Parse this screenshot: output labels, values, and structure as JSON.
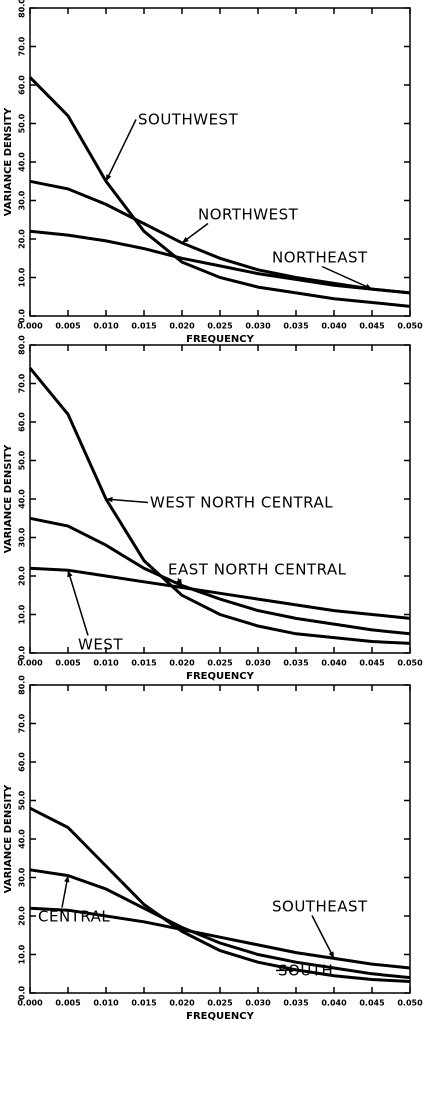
{
  "chart_data": [
    {
      "type": "line",
      "xlabel": "FREQUENCY",
      "ylabel": "VARIANCE DENSITY",
      "x": [
        0,
        0.005,
        0.01,
        0.015,
        0.02,
        0.025,
        0.03,
        0.035,
        0.04,
        0.045,
        0.05
      ],
      "xlim": [
        0,
        0.05
      ],
      "ylim": [
        0,
        80
      ],
      "xticks": [
        {
          "value": 0,
          "label": "0.000"
        },
        0.005,
        {
          "value": 0.01,
          "label": "0.010"
        },
        0.015,
        {
          "value": 0.02,
          "label": "0.020"
        },
        0.025,
        {
          "value": 0.03,
          "label": "0.030"
        },
        0.035,
        {
          "value": 0.04,
          "label": "0.040"
        },
        0.045,
        {
          "value": 0.05,
          "label": "0.050"
        }
      ],
      "yticks": [
        {
          "value": 0,
          "label": "0.0"
        },
        {
          "value": 10,
          "label": "10.0"
        },
        {
          "value": 20,
          "label": "20.0"
        },
        {
          "value": 30,
          "label": "30.0"
        },
        {
          "value": 40,
          "label": "40.0"
        },
        {
          "value": 50,
          "label": "50.0"
        },
        {
          "value": 60,
          "label": "60.0"
        },
        {
          "value": 70,
          "label": "70.0"
        },
        {
          "value": 80,
          "label": "80.0"
        }
      ],
      "series": [
        {
          "name": "SOUTHWEST",
          "color": "#000000",
          "values": [
            62,
            52,
            35,
            22,
            14,
            10,
            7.5,
            6,
            4.5,
            3.5,
            2.5
          ]
        },
        {
          "name": "NORTHWEST",
          "color": "#000000",
          "values": [
            35,
            33,
            29,
            24,
            19,
            15,
            12,
            10,
            8.5,
            7,
            6
          ]
        },
        {
          "name": "NORTHEAST",
          "color": "#000000",
          "values": [
            22,
            21,
            19.5,
            17.5,
            15,
            13,
            11,
            9.5,
            8,
            7,
            6
          ]
        }
      ]
    },
    {
      "type": "line",
      "xlabel": "FREQUENCY",
      "ylabel": "VARIANCE DENSITY",
      "x": [
        0,
        0.005,
        0.01,
        0.015,
        0.02,
        0.025,
        0.03,
        0.035,
        0.04,
        0.045,
        0.05
      ],
      "xlim": [
        0,
        0.05
      ],
      "ylim": [
        0,
        80
      ],
      "xticks": [
        {
          "value": 0,
          "label": "0.000"
        },
        0.005,
        {
          "value": 0.01,
          "label": "0.010"
        },
        0.015,
        {
          "value": 0.02,
          "label": "0.020"
        },
        0.025,
        {
          "value": 0.03,
          "label": "0.030"
        },
        0.035,
        {
          "value": 0.04,
          "label": "0.040"
        },
        0.045,
        {
          "value": 0.05,
          "label": "0.050"
        }
      ],
      "yticks": [
        {
          "value": 0,
          "label": "0.0"
        },
        {
          "value": 10,
          "label": "10.0"
        },
        {
          "value": 20,
          "label": "20.0"
        },
        {
          "value": 30,
          "label": "30.0"
        },
        {
          "value": 40,
          "label": "40.0"
        },
        {
          "value": 50,
          "label": "50.0"
        },
        {
          "value": 60,
          "label": "60.0"
        },
        {
          "value": 70,
          "label": "70.0"
        },
        {
          "value": 80,
          "label": "80.0"
        }
      ],
      "series": [
        {
          "name": "WEST NORTH CENTRAL",
          "color": "#000000",
          "values": [
            74,
            62,
            40,
            24,
            15,
            10,
            7,
            5,
            4,
            3,
            2.5
          ]
        },
        {
          "name": "EAST NORTH CENTRAL",
          "color": "#000000",
          "values": [
            35,
            33,
            28,
            22,
            17.5,
            14,
            11,
            9,
            7.5,
            6,
            5
          ]
        },
        {
          "name": "WEST",
          "color": "#000000",
          "values": [
            22,
            21.5,
            20,
            18.5,
            17,
            15.5,
            14,
            12.5,
            11,
            10,
            9
          ]
        }
      ]
    },
    {
      "type": "line",
      "xlabel": "FREQUENCY",
      "ylabel": "VARIANCE DENSITY",
      "x": [
        0,
        0.005,
        0.01,
        0.015,
        0.02,
        0.025,
        0.03,
        0.035,
        0.04,
        0.045,
        0.05
      ],
      "xlim": [
        0,
        0.05
      ],
      "ylim": [
        0,
        80
      ],
      "xticks": [
        {
          "value": 0,
          "label": "0.000"
        },
        0.005,
        {
          "value": 0.01,
          "label": "0.010"
        },
        0.015,
        {
          "value": 0.02,
          "label": "0.020"
        },
        0.025,
        {
          "value": 0.03,
          "label": "0.030"
        },
        0.035,
        {
          "value": 0.04,
          "label": "0.040"
        },
        0.045,
        {
          "value": 0.05,
          "label": "0.050"
        }
      ],
      "yticks": [
        {
          "value": 0,
          "label": "0.0"
        },
        {
          "value": 10,
          "label": "10.0"
        },
        {
          "value": 20,
          "label": "20.0"
        },
        {
          "value": 30,
          "label": "30.0"
        },
        {
          "value": 40,
          "label": "40.0"
        },
        {
          "value": 50,
          "label": "50.0"
        },
        {
          "value": 60,
          "label": "60.0"
        },
        {
          "value": 70,
          "label": "70.0"
        },
        {
          "value": 80,
          "label": "80.0"
        }
      ],
      "series": [
        {
          "name": "SOUTH",
          "color": "#000000",
          "values": [
            48,
            43,
            33,
            23,
            16,
            11,
            8,
            6,
            4.5,
            3.5,
            3
          ]
        },
        {
          "name": "CENTRAL",
          "color": "#000000",
          "values": [
            32,
            30.5,
            27,
            22,
            17,
            13,
            10,
            8,
            6.5,
            5,
            4
          ]
        },
        {
          "name": "SOUTHEAST",
          "color": "#000000",
          "values": [
            22,
            21.5,
            20,
            18.5,
            16.5,
            14.5,
            12.5,
            10.5,
            9,
            7.5,
            6.5
          ]
        }
      ]
    }
  ]
}
